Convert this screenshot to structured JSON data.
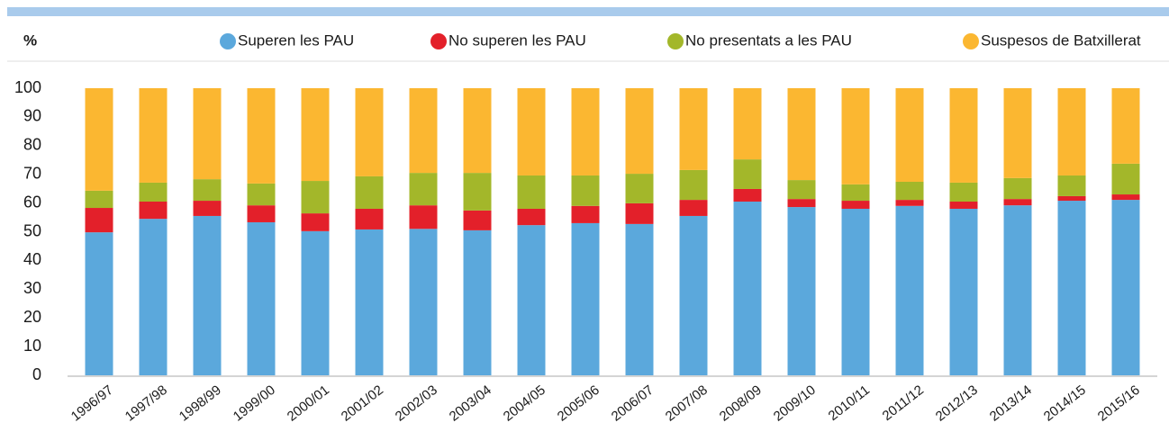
{
  "chart_data": {
    "type": "stacked_bar",
    "y_label": "%",
    "categories": [
      "1996/97",
      "1997/98",
      "1998/99",
      "1999/00",
      "2000/01",
      "2001/02",
      "2002/03",
      "2003/04",
      "2004/05",
      "2005/06",
      "2006/07",
      "2007/08",
      "2008/09",
      "2009/10",
      "2010/11",
      "2011/12",
      "2012/13",
      "2013/14",
      "2014/15",
      "2015/16"
    ],
    "series": [
      {
        "name": "Superen les PAU",
        "color": "#5ba8dc",
        "values": [
          49.8,
          54.5,
          55.5,
          53.3,
          50.2,
          50.8,
          51,
          50.5,
          52.3,
          53,
          52.7,
          55.5,
          60.5,
          58.6,
          58,
          59,
          58,
          59.2,
          60.8,
          61.1
        ]
      },
      {
        "name": "No superen les PAU",
        "color": "#e3202a",
        "values": [
          8.5,
          6,
          5.3,
          5.9,
          6.2,
          7.2,
          8.2,
          6.9,
          5.7,
          6,
          7.2,
          5.6,
          4.4,
          2.8,
          2.8,
          2.1,
          2.5,
          2.2,
          1.6,
          1.9
        ]
      },
      {
        "name": "No presentats a les PAU",
        "color": "#a3b72a",
        "values": [
          6,
          6.6,
          7.5,
          7.6,
          11.3,
          11.3,
          11.3,
          13.1,
          11.6,
          10.6,
          10.3,
          10.4,
          10.3,
          6.6,
          5.7,
          6.3,
          6.6,
          7.3,
          7.2,
          10.7
        ]
      },
      {
        "name": "Suspesos de Batxillerat",
        "color": "#fbb731",
        "values": [
          35.7,
          32.9,
          31.7,
          33.2,
          32.3,
          30.7,
          29.5,
          29.5,
          30.4,
          30.4,
          29.8,
          28.5,
          24.8,
          32,
          33.5,
          32.6,
          32.9,
          31.3,
          30.4,
          26.3
        ]
      }
    ],
    "ylim": [
      0,
      100
    ],
    "yticks": [
      0,
      10,
      20,
      30,
      40,
      50,
      60,
      70,
      80,
      90,
      100
    ],
    "grid": false,
    "legend": "top"
  }
}
